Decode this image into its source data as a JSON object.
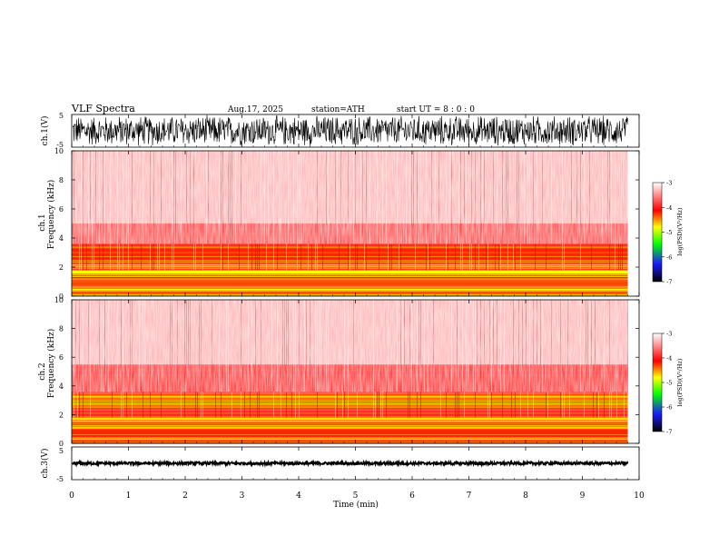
{
  "header": {
    "title": "VLF  Spectra",
    "date": "Aug.17, 2025",
    "station": "station=ATH",
    "start_ut": "start  UT  =   8  : 0   : 0"
  },
  "colors": {
    "spectrogram_scale": [
      "#000000",
      "#1a1aff",
      "#00ff00",
      "#ffff00",
      "#ff0000",
      "#ffffff"
    ],
    "waveform": "#000000"
  },
  "chart_data": [
    {
      "type": "line",
      "panel": "ch1-waveform",
      "ylabel": "ch.1(V)",
      "ylim": [
        -5,
        5
      ],
      "yticks": [
        "5",
        "-5"
      ],
      "xlim": [
        0,
        10
      ],
      "series": [
        {
          "x_range": [
            0,
            9.8
          ],
          "amplitude_range": [
            -5,
            5
          ],
          "mean": 0
        }
      ]
    },
    {
      "type": "heatmap",
      "panel": "ch1-spectrogram",
      "ylabel_channel": "ch.1",
      "ylabel": "Frequency  (kHz)",
      "ylim": [
        0,
        10
      ],
      "yticks": [
        "0",
        "2",
        "4",
        "6",
        "8",
        "10"
      ],
      "xlim": [
        0,
        10
      ],
      "data_extent_min": 9.8,
      "colorbar": {
        "label": "log(PSD)(V²/Hz)",
        "range": [
          -7,
          -3
        ],
        "ticks": [
          "-3",
          "-4",
          "-5",
          "-6",
          "-7"
        ]
      },
      "bands_khz": [
        {
          "from": 0,
          "to": 0.6,
          "level": -4.8
        },
        {
          "from": 0.6,
          "to": 1.1,
          "level": -4.3
        },
        {
          "from": 1.1,
          "to": 1.8,
          "level": -4.8
        },
        {
          "from": 1.8,
          "to": 2.5,
          "level": -3.9
        },
        {
          "from": 2.5,
          "to": 3.6,
          "level": -4.2
        },
        {
          "from": 3.6,
          "to": 5.0,
          "level": -3.7
        },
        {
          "from": 5.0,
          "to": 10.0,
          "level": -3.3
        }
      ]
    },
    {
      "type": "heatmap",
      "panel": "ch2-spectrogram",
      "ylabel_channel": "ch.2",
      "ylabel": "Frequency  (kHz)",
      "ylim": [
        0,
        10
      ],
      "yticks": [
        "0",
        "2",
        "4",
        "6",
        "8",
        "10"
      ],
      "xlim": [
        0,
        10
      ],
      "data_extent_min": 9.8,
      "colorbar": {
        "label": "log(PSD)(V²/Hz)",
        "range": [
          -7,
          -3
        ],
        "ticks": [
          "-3",
          "-4",
          "-5",
          "-6",
          "-7"
        ]
      },
      "bands_khz": [
        {
          "from": 0,
          "to": 0.5,
          "level": -4.5
        },
        {
          "from": 0.5,
          "to": 1.0,
          "level": -4.2
        },
        {
          "from": 1.0,
          "to": 1.8,
          "level": -4.7
        },
        {
          "from": 1.8,
          "to": 2.3,
          "level": -3.9
        },
        {
          "from": 2.3,
          "to": 3.5,
          "level": -4.4
        },
        {
          "from": 3.5,
          "to": 5.5,
          "level": -3.8
        },
        {
          "from": 5.5,
          "to": 10.0,
          "level": -3.3
        }
      ]
    },
    {
      "type": "line",
      "panel": "ch3-waveform",
      "ylabel": "ch.3(V)",
      "ylim": [
        -5,
        5
      ],
      "yticks": [
        "5",
        "-5"
      ],
      "xlim": [
        0,
        10
      ],
      "xlabel": "Time  (min)",
      "xticks": [
        "0",
        "1",
        "2",
        "3",
        "4",
        "5",
        "6",
        "7",
        "8",
        "9",
        "10"
      ],
      "series": [
        {
          "x_range": [
            0,
            9.8
          ],
          "amplitude_range": [
            -0.4,
            0.4
          ],
          "mean": 0
        }
      ]
    }
  ]
}
